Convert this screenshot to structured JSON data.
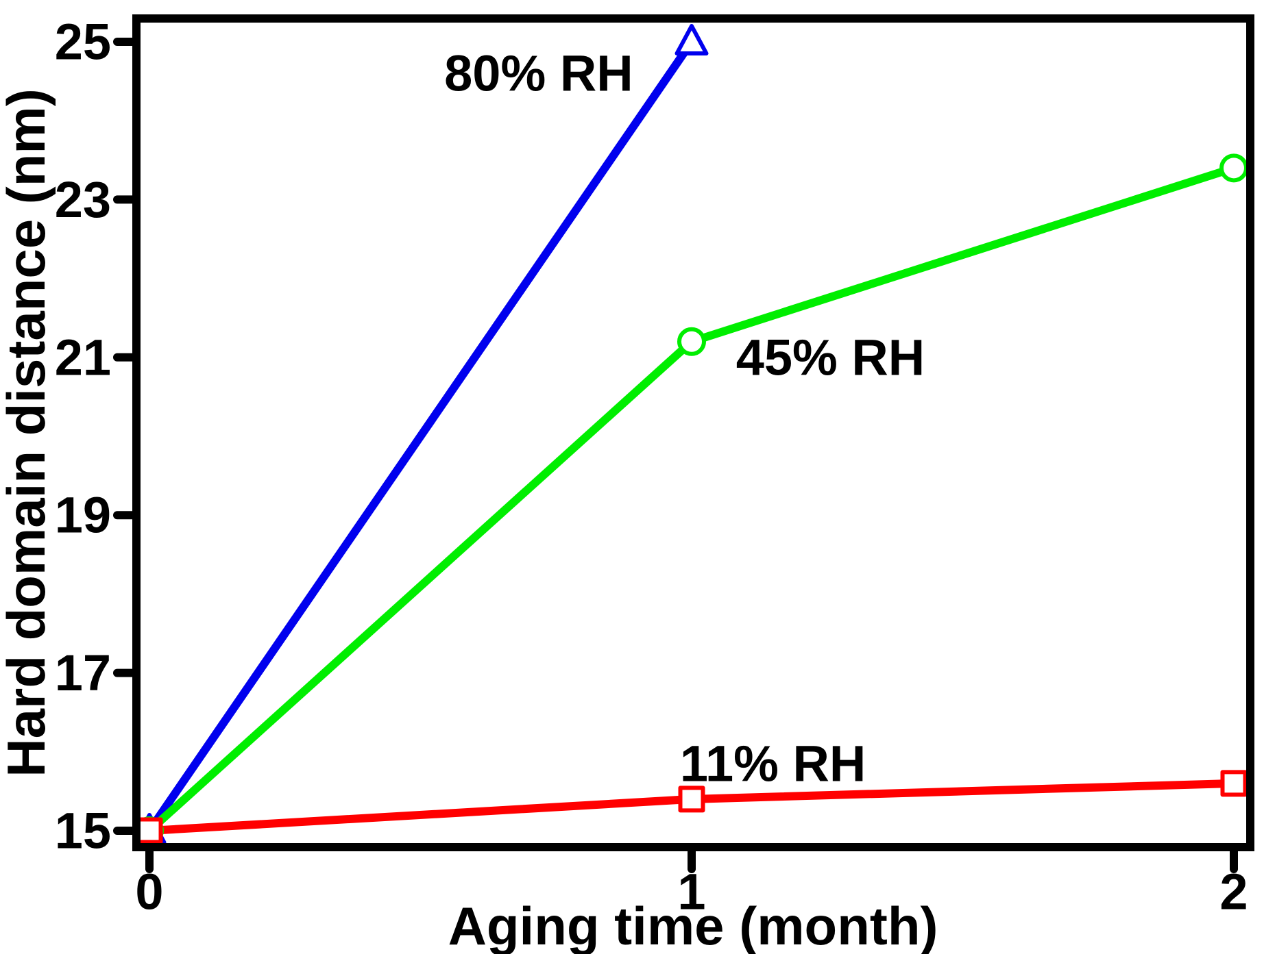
{
  "chart_data": {
    "type": "line",
    "title": "",
    "xlabel": "Aging time (month)",
    "ylabel": "Hard domain distance (nm)",
    "x_ticks": [
      0,
      1,
      2
    ],
    "y_ticks": [
      15,
      17,
      19,
      21,
      23,
      25
    ],
    "xlim": [
      -0.03,
      2.03
    ],
    "ylim": [
      14.8,
      25.3
    ],
    "grid": false,
    "legend_position": "inline-annotations",
    "axis_color": "#000000",
    "background_color": "#ffffff",
    "series": [
      {
        "name": "80% RH",
        "color": "#0000ee",
        "marker": "triangle-up",
        "x": [
          0,
          1
        ],
        "y": [
          15.0,
          25.0
        ]
      },
      {
        "name": "45% RH",
        "color": "#00ee00",
        "marker": "circle",
        "x": [
          0,
          1,
          2
        ],
        "y": [
          15.0,
          21.2,
          23.4
        ]
      },
      {
        "name": "11% RH",
        "color": "#ff0000",
        "marker": "square",
        "x": [
          0,
          1,
          2
        ],
        "y": [
          15.0,
          15.4,
          15.6
        ]
      }
    ],
    "annotations": [
      {
        "text": "80% RH",
        "x": 0.718,
        "y": 24.6
      },
      {
        "text": "45% RH",
        "x": 1.256,
        "y": 21.0
      },
      {
        "text": "11% RH",
        "x": 1.15,
        "y": 15.85
      }
    ]
  }
}
